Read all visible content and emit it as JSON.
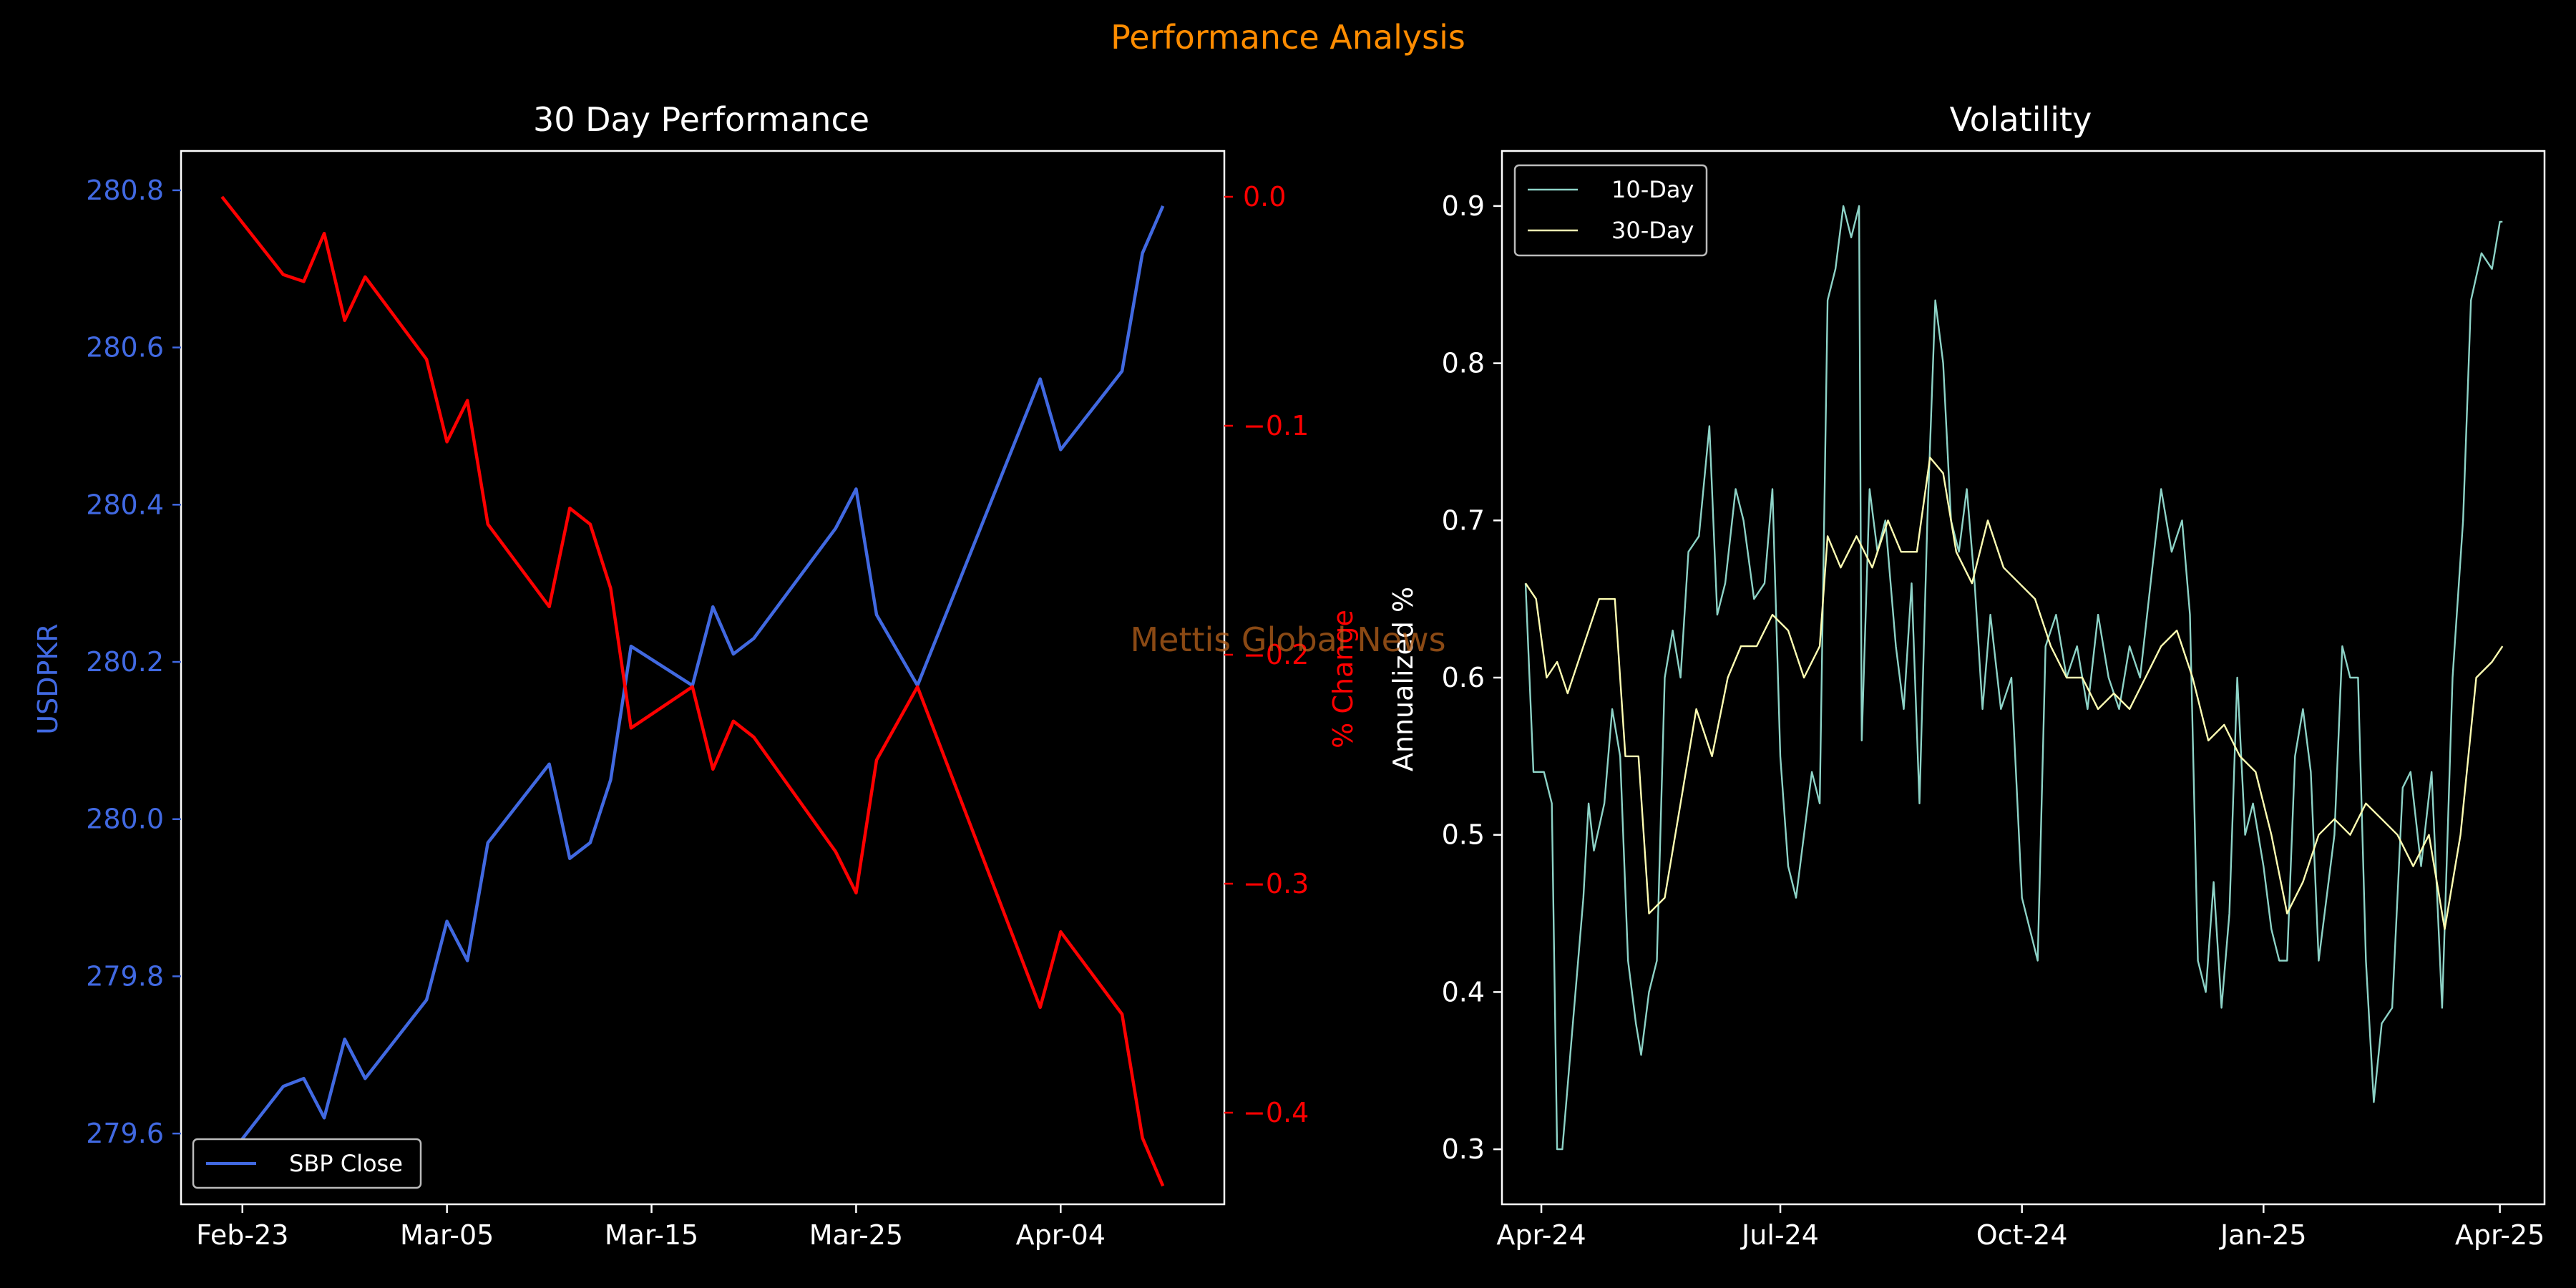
{
  "suptitle": "Performance Analysis",
  "watermark": "Mettis Global News",
  "colors": {
    "background": "#000000",
    "suptitle": "#ff8c00",
    "watermark": "#b8621b",
    "axis": "#ffffff",
    "price": "#4169e1",
    "pct": "#ff0000",
    "vol10": "#8dd3c7",
    "vol30": "#ffffb3"
  },
  "chart_data": [
    {
      "type": "line",
      "title": "30 Day Performance",
      "xlabel": "",
      "ylabel": "USDPKR",
      "ylabel_right": "% Change",
      "x_tick_labels": [
        "Feb-23",
        "Mar-05",
        "Mar-15",
        "Mar-25",
        "Apr-04"
      ],
      "x_tick_dates": [
        "2025-02-23",
        "2025-03-05",
        "2025-03-15",
        "2025-03-25",
        "2025-04-04"
      ],
      "xlim": [
        "2025-02-20",
        "2025-04-12"
      ],
      "ylim": [
        279.51,
        280.85
      ],
      "ylim_right": [
        -0.44,
        0.02
      ],
      "y_ticks": [
        279.6,
        279.8,
        280.0,
        280.2,
        280.4,
        280.6,
        280.8
      ],
      "y_ticks_right": [
        0.0,
        -0.1,
        -0.2,
        -0.3,
        -0.4
      ],
      "legend": {
        "position": "lower-left"
      },
      "series": [
        {
          "name": "SBP Close",
          "axis": "left",
          "x": [
            "2025-02-22",
            "2025-02-25",
            "2025-02-26",
            "2025-02-27",
            "2025-02-28",
            "2025-03-01",
            "2025-03-04",
            "2025-03-05",
            "2025-03-06",
            "2025-03-07",
            "2025-03-10",
            "2025-03-11",
            "2025-03-12",
            "2025-03-13",
            "2025-03-14",
            "2025-03-17",
            "2025-03-18",
            "2025-03-19",
            "2025-03-20",
            "2025-03-24",
            "2025-03-25",
            "2025-03-26",
            "2025-03-28",
            "2025-04-03",
            "2025-04-04",
            "2025-04-07",
            "2025-04-08",
            "2025-04-09"
          ],
          "values": [
            279.56,
            279.66,
            279.67,
            279.62,
            279.72,
            279.67,
            279.77,
            279.87,
            279.82,
            279.97,
            280.07,
            279.95,
            279.97,
            280.05,
            280.22,
            280.17,
            280.27,
            280.21,
            280.23,
            280.37,
            280.42,
            280.26,
            280.17,
            280.56,
            280.47,
            280.57,
            280.72,
            280.78
          ]
        },
        {
          "name": "% Change",
          "axis": "right",
          "x": [
            "2025-02-22",
            "2025-02-25",
            "2025-02-26",
            "2025-02-27",
            "2025-02-28",
            "2025-03-01",
            "2025-03-04",
            "2025-03-05",
            "2025-03-06",
            "2025-03-07",
            "2025-03-10",
            "2025-03-11",
            "2025-03-12",
            "2025-03-13",
            "2025-03-14",
            "2025-03-17",
            "2025-03-18",
            "2025-03-19",
            "2025-03-20",
            "2025-03-24",
            "2025-03-25",
            "2025-03-26",
            "2025-03-28",
            "2025-04-03",
            "2025-04-04",
            "2025-04-07",
            "2025-04-08",
            "2025-04-09"
          ],
          "values": [
            0.0,
            -0.034,
            -0.037,
            -0.016,
            -0.054,
            -0.035,
            -0.071,
            -0.107,
            -0.089,
            -0.143,
            -0.179,
            -0.136,
            -0.143,
            -0.171,
            -0.232,
            -0.214,
            -0.25,
            -0.229,
            -0.236,
            -0.286,
            -0.304,
            -0.246,
            -0.214,
            -0.354,
            -0.321,
            -0.357,
            -0.411,
            -0.432
          ]
        }
      ]
    },
    {
      "type": "line",
      "title": "Volatility",
      "xlabel": "",
      "ylabel": "Annualized %",
      "x_tick_labels": [
        "Apr-24",
        "Jul-24",
        "Oct-24",
        "Jan-25",
        "Apr-25"
      ],
      "x_tick_dates": [
        "2024-04-01",
        "2024-07-01",
        "2024-10-01",
        "2025-01-01",
        "2025-04-01"
      ],
      "xlim": [
        "2024-03-17",
        "2025-04-18"
      ],
      "ylim": [
        0.265,
        0.935
      ],
      "y_ticks": [
        0.3,
        0.4,
        0.5,
        0.6,
        0.7,
        0.8,
        0.9
      ],
      "legend": {
        "position": "top-left"
      },
      "series": [
        {
          "name": "10-Day",
          "points": [
            [
              "2024-03-26",
              0.66
            ],
            [
              "2024-03-29",
              0.54
            ],
            [
              "2024-04-02",
              0.54
            ],
            [
              "2024-04-05",
              0.52
            ],
            [
              "2024-04-07",
              0.3
            ],
            [
              "2024-04-09",
              0.3
            ],
            [
              "2024-04-13",
              0.38
            ],
            [
              "2024-04-17",
              0.46
            ],
            [
              "2024-04-19",
              0.52
            ],
            [
              "2024-04-21",
              0.49
            ],
            [
              "2024-04-25",
              0.52
            ],
            [
              "2024-04-28",
              0.58
            ],
            [
              "2024-05-01",
              0.55
            ],
            [
              "2024-05-04",
              0.42
            ],
            [
              "2024-05-07",
              0.38
            ],
            [
              "2024-05-09",
              0.36
            ],
            [
              "2024-05-12",
              0.4
            ],
            [
              "2024-05-15",
              0.42
            ],
            [
              "2024-05-18",
              0.6
            ],
            [
              "2024-05-21",
              0.63
            ],
            [
              "2024-05-24",
              0.6
            ],
            [
              "2024-05-27",
              0.68
            ],
            [
              "2024-05-31",
              0.69
            ],
            [
              "2024-06-04",
              0.76
            ],
            [
              "2024-06-07",
              0.64
            ],
            [
              "2024-06-10",
              0.66
            ],
            [
              "2024-06-14",
              0.72
            ],
            [
              "2024-06-17",
              0.7
            ],
            [
              "2024-06-21",
              0.65
            ],
            [
              "2024-06-25",
              0.66
            ],
            [
              "2024-06-28",
              0.72
            ],
            [
              "2024-07-01",
              0.55
            ],
            [
              "2024-07-04",
              0.48
            ],
            [
              "2024-07-07",
              0.46
            ],
            [
              "2024-07-10",
              0.5
            ],
            [
              "2024-07-13",
              0.54
            ],
            [
              "2024-07-16",
              0.52
            ],
            [
              "2024-07-19",
              0.84
            ],
            [
              "2024-07-22",
              0.86
            ],
            [
              "2024-07-25",
              0.9
            ],
            [
              "2024-07-28",
              0.88
            ],
            [
              "2024-07-31",
              0.9
            ],
            [
              "2024-08-01",
              0.56
            ],
            [
              "2024-08-04",
              0.72
            ],
            [
              "2024-08-07",
              0.68
            ],
            [
              "2024-08-10",
              0.7
            ],
            [
              "2024-08-14",
              0.62
            ],
            [
              "2024-08-17",
              0.58
            ],
            [
              "2024-08-20",
              0.66
            ],
            [
              "2024-08-23",
              0.52
            ],
            [
              "2024-08-26",
              0.7
            ],
            [
              "2024-08-29",
              0.84
            ],
            [
              "2024-09-01",
              0.8
            ],
            [
              "2024-09-04",
              0.7
            ],
            [
              "2024-09-07",
              0.68
            ],
            [
              "2024-09-10",
              0.72
            ],
            [
              "2024-09-13",
              0.66
            ],
            [
              "2024-09-16",
              0.58
            ],
            [
              "2024-09-19",
              0.64
            ],
            [
              "2024-09-23",
              0.58
            ],
            [
              "2024-09-27",
              0.6
            ],
            [
              "2024-10-01",
              0.46
            ],
            [
              "2024-10-04",
              0.44
            ],
            [
              "2024-10-07",
              0.42
            ],
            [
              "2024-10-10",
              0.62
            ],
            [
              "2024-10-14",
              0.64
            ],
            [
              "2024-10-18",
              0.6
            ],
            [
              "2024-10-22",
              0.62
            ],
            [
              "2024-10-26",
              0.58
            ],
            [
              "2024-10-30",
              0.64
            ],
            [
              "2024-11-03",
              0.6
            ],
            [
              "2024-11-07",
              0.58
            ],
            [
              "2024-11-11",
              0.62
            ],
            [
              "2024-11-15",
              0.6
            ],
            [
              "2024-11-19",
              0.66
            ],
            [
              "2024-11-23",
              0.72
            ],
            [
              "2024-11-27",
              0.68
            ],
            [
              "2024-12-01",
              0.7
            ],
            [
              "2024-12-04",
              0.64
            ],
            [
              "2024-12-07",
              0.42
            ],
            [
              "2024-12-10",
              0.4
            ],
            [
              "2024-12-13",
              0.47
            ],
            [
              "2024-12-16",
              0.39
            ],
            [
              "2024-12-19",
              0.45
            ],
            [
              "2024-12-22",
              0.6
            ],
            [
              "2024-12-25",
              0.5
            ],
            [
              "2024-12-28",
              0.52
            ],
            [
              "2025-01-01",
              0.48
            ],
            [
              "2025-01-04",
              0.44
            ],
            [
              "2025-01-07",
              0.42
            ],
            [
              "2025-01-10",
              0.42
            ],
            [
              "2025-01-13",
              0.55
            ],
            [
              "2025-01-16",
              0.58
            ],
            [
              "2025-01-19",
              0.54
            ],
            [
              "2025-01-22",
              0.42
            ],
            [
              "2025-01-25",
              0.46
            ],
            [
              "2025-01-28",
              0.5
            ],
            [
              "2025-01-31",
              0.62
            ],
            [
              "2025-02-03",
              0.6
            ],
            [
              "2025-02-06",
              0.6
            ],
            [
              "2025-02-09",
              0.42
            ],
            [
              "2025-02-12",
              0.33
            ],
            [
              "2025-02-15",
              0.38
            ],
            [
              "2025-02-19",
              0.39
            ],
            [
              "2025-02-23",
              0.53
            ],
            [
              "2025-02-26",
              0.54
            ],
            [
              "2025-03-02",
              0.48
            ],
            [
              "2025-03-06",
              0.54
            ],
            [
              "2025-03-10",
              0.39
            ],
            [
              "2025-03-14",
              0.6
            ],
            [
              "2025-03-18",
              0.7
            ],
            [
              "2025-03-21",
              0.84
            ],
            [
              "2025-03-25",
              0.87
            ],
            [
              "2025-03-29",
              0.86
            ],
            [
              "2025-04-01",
              0.89
            ],
            [
              "2025-04-02",
              0.89
            ]
          ]
        },
        {
          "name": "30-Day",
          "points": [
            [
              "2024-03-26",
              0.66
            ],
            [
              "2024-03-30",
              0.65
            ],
            [
              "2024-04-03",
              0.6
            ],
            [
              "2024-04-07",
              0.61
            ],
            [
              "2024-04-11",
              0.59
            ],
            [
              "2024-04-17",
              0.62
            ],
            [
              "2024-04-23",
              0.65
            ],
            [
              "2024-04-29",
              0.65
            ],
            [
              "2024-05-03",
              0.55
            ],
            [
              "2024-05-08",
              0.55
            ],
            [
              "2024-05-12",
              0.45
            ],
            [
              "2024-05-18",
              0.46
            ],
            [
              "2024-05-24",
              0.52
            ],
            [
              "2024-05-30",
              0.58
            ],
            [
              "2024-06-05",
              0.55
            ],
            [
              "2024-06-11",
              0.6
            ],
            [
              "2024-06-16",
              0.62
            ],
            [
              "2024-06-22",
              0.62
            ],
            [
              "2024-06-28",
              0.64
            ],
            [
              "2024-07-04",
              0.63
            ],
            [
              "2024-07-10",
              0.6
            ],
            [
              "2024-07-16",
              0.62
            ],
            [
              "2024-07-19",
              0.69
            ],
            [
              "2024-07-24",
              0.67
            ],
            [
              "2024-07-30",
              0.69
            ],
            [
              "2024-08-05",
              0.67
            ],
            [
              "2024-08-11",
              0.7
            ],
            [
              "2024-08-16",
              0.68
            ],
            [
              "2024-08-22",
              0.68
            ],
            [
              "2024-08-27",
              0.74
            ],
            [
              "2024-09-01",
              0.73
            ],
            [
              "2024-09-06",
              0.68
            ],
            [
              "2024-09-12",
              0.66
            ],
            [
              "2024-09-18",
              0.7
            ],
            [
              "2024-09-24",
              0.67
            ],
            [
              "2024-09-30",
              0.66
            ],
            [
              "2024-10-06",
              0.65
            ],
            [
              "2024-10-12",
              0.62
            ],
            [
              "2024-10-18",
              0.6
            ],
            [
              "2024-10-24",
              0.6
            ],
            [
              "2024-10-30",
              0.58
            ],
            [
              "2024-11-05",
              0.59
            ],
            [
              "2024-11-11",
              0.58
            ],
            [
              "2024-11-17",
              0.6
            ],
            [
              "2024-11-23",
              0.62
            ],
            [
              "2024-11-29",
              0.63
            ],
            [
              "2024-12-05",
              0.6
            ],
            [
              "2024-12-11",
              0.56
            ],
            [
              "2024-12-17",
              0.57
            ],
            [
              "2024-12-23",
              0.55
            ],
            [
              "2024-12-29",
              0.54
            ],
            [
              "2025-01-04",
              0.5
            ],
            [
              "2025-01-10",
              0.45
            ],
            [
              "2025-01-16",
              0.47
            ],
            [
              "2025-01-22",
              0.5
            ],
            [
              "2025-01-28",
              0.51
            ],
            [
              "2025-02-03",
              0.5
            ],
            [
              "2025-02-09",
              0.52
            ],
            [
              "2025-02-15",
              0.51
            ],
            [
              "2025-02-21",
              0.5
            ],
            [
              "2025-02-27",
              0.48
            ],
            [
              "2025-03-05",
              0.5
            ],
            [
              "2025-03-11",
              0.44
            ],
            [
              "2025-03-17",
              0.5
            ],
            [
              "2025-03-23",
              0.6
            ],
            [
              "2025-03-29",
              0.61
            ],
            [
              "2025-04-02",
              0.62
            ]
          ]
        }
      ]
    }
  ]
}
